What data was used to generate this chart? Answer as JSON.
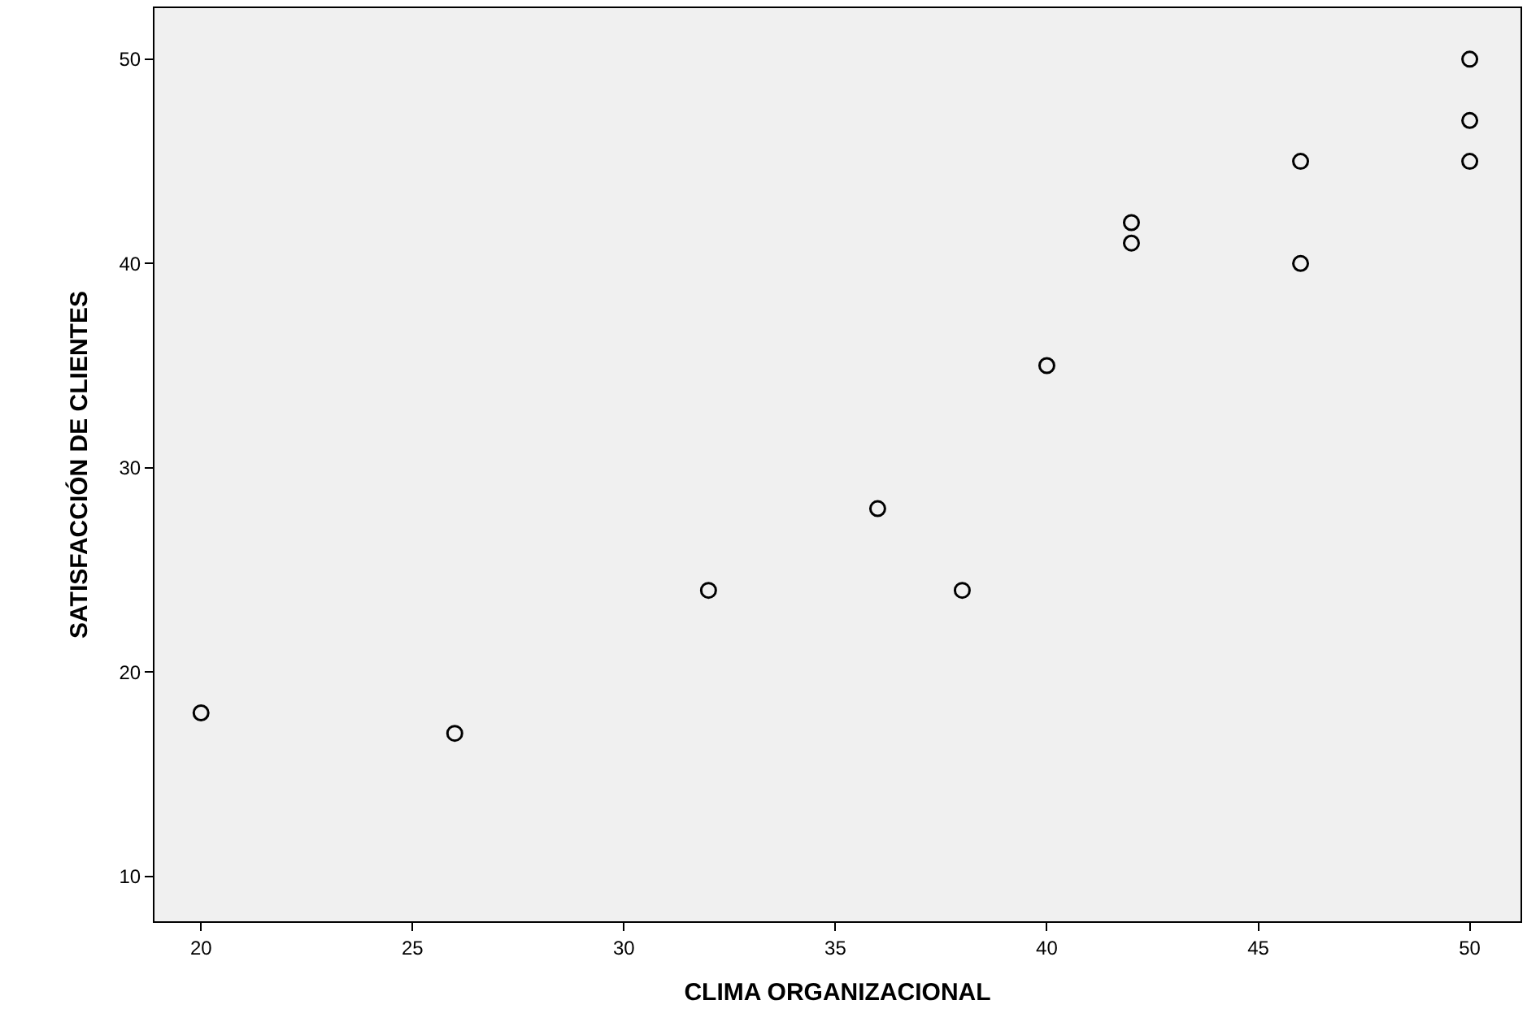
{
  "chart_data": {
    "type": "scatter",
    "xlabel": "CLIMA ORGANIZACIONAL",
    "ylabel": "SATISFACCIÓN DE CLIENTES",
    "x": [
      20,
      26,
      32,
      36,
      38,
      40,
      42,
      42,
      46,
      46,
      50,
      50,
      50
    ],
    "series": [
      {
        "color": "#000000",
        "values": [
          18,
          17,
          24,
          28,
          24,
          35,
          42,
          41,
          45,
          40,
          50,
          47,
          45
        ]
      }
    ],
    "xlim": [
      18.9,
      51.2
    ],
    "xticks": [
      20,
      25,
      30,
      35,
      40,
      45,
      50
    ],
    "ylim": [
      7.8,
      52.5
    ],
    "yticks": [
      10,
      20,
      30,
      40,
      50
    ],
    "grid": false,
    "marker": "circle"
  }
}
